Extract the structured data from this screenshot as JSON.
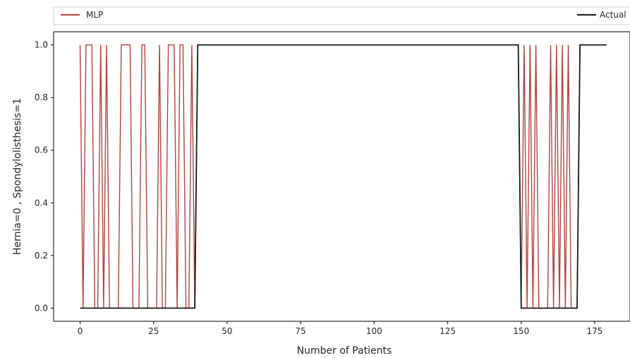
{
  "chart_data": {
    "type": "line",
    "title": "",
    "xlabel": "Number of Patients",
    "ylabel": "Hernia=0 , Spondylolisthesis=1",
    "xlim": [
      -9,
      187
    ],
    "ylim": [
      -0.05,
      1.05
    ],
    "xticks": [
      0,
      25,
      50,
      75,
      100,
      125,
      150,
      175
    ],
    "yticks": [
      0.0,
      0.2,
      0.4,
      0.6,
      0.8,
      1.0
    ],
    "ytick_labels": [
      "0.0",
      "0.2",
      "0.4",
      "0.6",
      "0.8",
      "1.0"
    ],
    "legend_position": "top",
    "grid": false,
    "series": [
      {
        "name": "MLP",
        "color": "#b5403c",
        "x": [
          0,
          1,
          2,
          3,
          4,
          5,
          6,
          7,
          8,
          9,
          10,
          11,
          12,
          13,
          14,
          15,
          16,
          17,
          18,
          19,
          20,
          21,
          22,
          23,
          24,
          25,
          26,
          27,
          28,
          29,
          30,
          31,
          32,
          33,
          34,
          35,
          36,
          37,
          38,
          39,
          40,
          50,
          60,
          70,
          80,
          90,
          100,
          110,
          120,
          130,
          140,
          149,
          150,
          151,
          152,
          153,
          154,
          155,
          156,
          157,
          158,
          159,
          160,
          161,
          162,
          163,
          164,
          165,
          166,
          167,
          168,
          169,
          170,
          171,
          172,
          173,
          174,
          175,
          176,
          177,
          178,
          179
        ],
        "values": [
          1,
          0,
          1,
          1,
          1,
          0,
          0,
          1,
          0,
          1,
          0,
          0,
          0,
          0,
          1,
          1,
          1,
          1,
          0,
          0,
          0,
          1,
          1,
          0,
          0,
          0,
          0,
          1,
          0,
          0,
          1,
          1,
          1,
          0,
          1,
          1,
          0,
          0,
          1,
          0,
          1,
          1,
          1,
          1,
          1,
          1,
          1,
          1,
          1,
          1,
          1,
          1,
          0,
          1,
          0,
          1,
          0,
          1,
          0,
          0,
          0,
          0,
          1,
          0,
          1,
          0,
          1,
          0,
          1,
          0,
          0,
          0,
          1,
          1,
          1,
          1,
          1,
          1,
          1,
          1,
          1,
          1
        ]
      },
      {
        "name": "Actual",
        "color": "#1a1a1a",
        "x": [
          0,
          39,
          40,
          149,
          150,
          169,
          170,
          179
        ],
        "values": [
          0,
          0,
          1,
          1,
          0,
          0,
          1,
          1
        ]
      }
    ]
  }
}
